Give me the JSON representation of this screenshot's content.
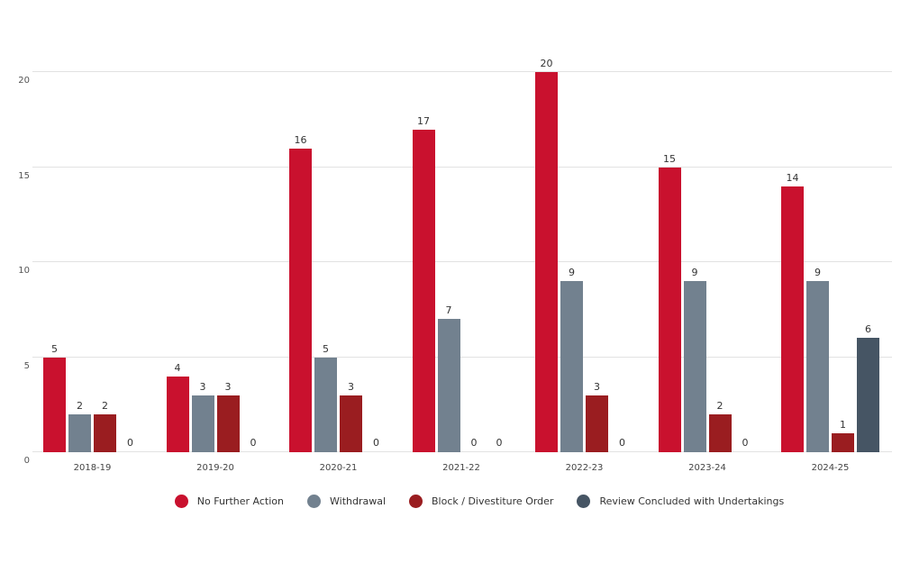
{
  "chart_data": {
    "type": "bar",
    "title": "",
    "categories": [
      "2018-19",
      "2019-20",
      "2020-21",
      "2021-22",
      "2022-23",
      "2023-24",
      "2024-25"
    ],
    "series": [
      {
        "name": "No Further Action",
        "color": "#c9112e",
        "values": [
          5,
          4,
          16,
          17,
          20,
          15,
          14
        ]
      },
      {
        "name": "Withdrawal",
        "color": "#72818f",
        "values": [
          2,
          3,
          5,
          7,
          9,
          9,
          9
        ]
      },
      {
        "name": "Block / Divestiture Order",
        "color": "#9a1d20",
        "values": [
          2,
          3,
          3,
          0,
          3,
          2,
          1
        ]
      },
      {
        "name": "Review Concluded with Undertakings",
        "color": "#465564",
        "values": [
          0,
          0,
          0,
          0,
          0,
          0,
          6
        ]
      }
    ],
    "y_ticks": [
      0,
      5,
      10,
      15,
      20
    ],
    "ylim": [
      0,
      21.2
    ],
    "xlabel": "",
    "ylabel": "",
    "grid": true,
    "value_labels": true,
    "legend_position": "bottom",
    "colors": {
      "gridline": "#e2e2e2",
      "tick_text": "#555555",
      "label_text": "#333333",
      "axis_text": "#444444",
      "background": "#ffffff"
    }
  }
}
